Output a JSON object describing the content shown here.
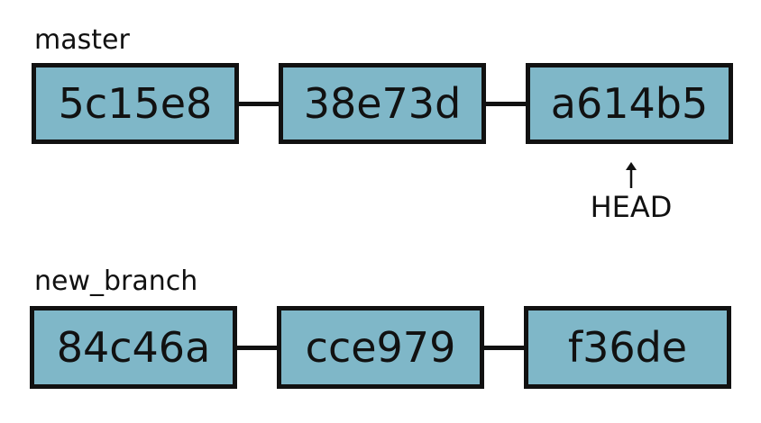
{
  "branches": [
    {
      "name": "master",
      "commits": [
        "5c15e8",
        "38e73d",
        "a614b5"
      ]
    },
    {
      "name": "new_branch",
      "commits": [
        "84c46a",
        "cce979",
        "f36de"
      ]
    }
  ],
  "head": {
    "label": "HEAD"
  },
  "colors": {
    "commit_fill": "#7fb7c8",
    "stroke": "#111111",
    "background": "#ffffff"
  }
}
